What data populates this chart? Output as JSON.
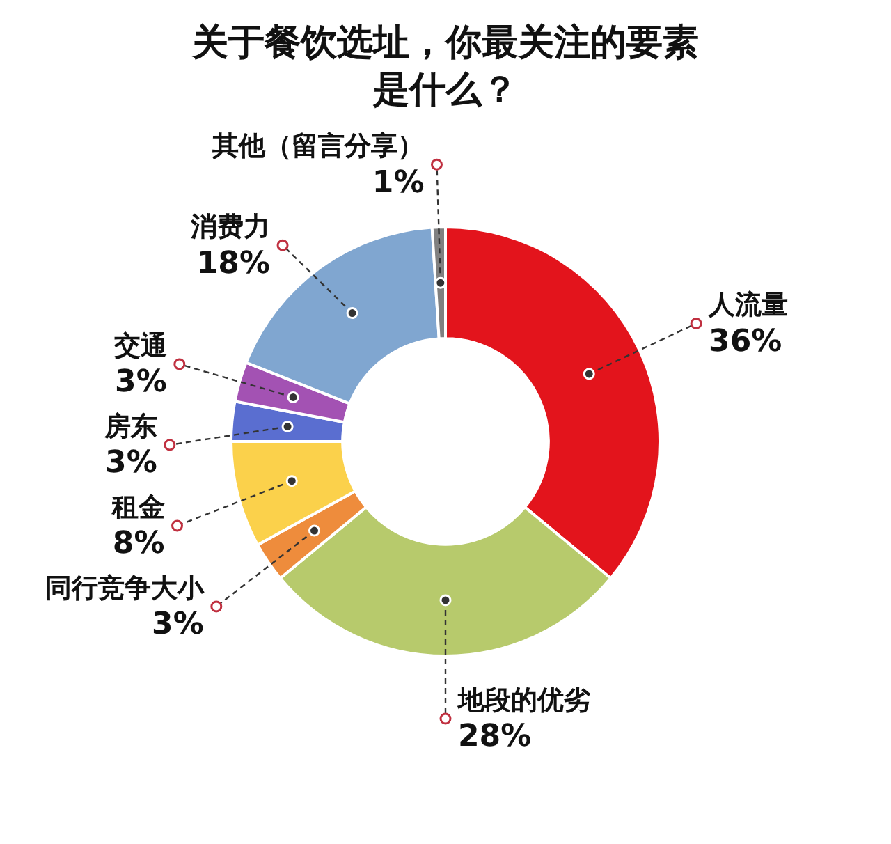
{
  "chart_data": {
    "type": "donut",
    "title": "关于餐饮选址，你最关注的要素是什么？",
    "categories": [
      "人流量",
      "地段的优劣",
      "同行竞争大小",
      "租金",
      "房东",
      "交通",
      "消费力",
      "其他（留言分享）"
    ],
    "values": [
      36,
      28,
      3,
      8,
      3,
      3,
      18,
      1
    ],
    "colors": [
      "#e3141c",
      "#b7ca6c",
      "#ee8c3c",
      "#fbd14b",
      "#5a6ed0",
      "#a352b3",
      "#80a6d0",
      "#808080"
    ],
    "value_labels": [
      "36%",
      "28%",
      "3%",
      "8%",
      "3%",
      "3%",
      "18%",
      "1%"
    ],
    "legend": false
  }
}
